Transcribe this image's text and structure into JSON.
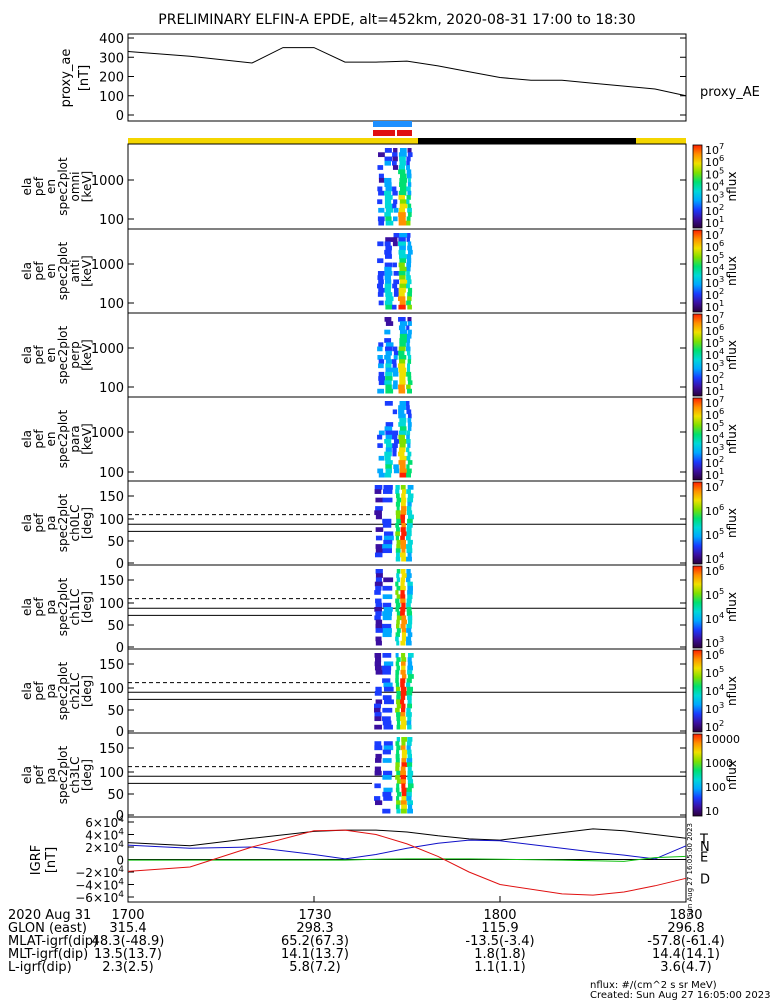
{
  "title": "PRELIMINARY ELFIN-A EPDE, alt=452km, 2020-08-31 17:00 to 18:30",
  "colors": {
    "yellow": "#f4d600",
    "blue_bar": "#1e90ff",
    "red_bar": "#e01010",
    "black": "#000000",
    "igrf_T": "#000000",
    "igrf_N": "#1010c8",
    "igrf_E": "#10c010",
    "igrf_D": "#e01010"
  },
  "colorbar_stops": [
    "#2a003a",
    "#3b0fa0",
    "#1a3cff",
    "#00a8ff",
    "#00d8d8",
    "#00e070",
    "#7fe000",
    "#f0e000",
    "#ff9000",
    "#ff2000"
  ],
  "chart_data": [
    {
      "type": "line",
      "name": "proxy_ae",
      "ylabel": "proxy_ae [nT]",
      "legend": "proxy_AE",
      "ylim": [
        0,
        400
      ],
      "yticks": [
        "400",
        "300",
        "200",
        "100",
        "0"
      ],
      "x_minutes": [
        0,
        10,
        20,
        25,
        30,
        35,
        40,
        45,
        50,
        55,
        60,
        65,
        70,
        75,
        80,
        85,
        90
      ],
      "values": [
        330,
        305,
        270,
        350,
        350,
        275,
        275,
        280,
        255,
        225,
        195,
        180,
        180,
        165,
        150,
        135,
        100
      ]
    },
    {
      "type": "heatmap",
      "name": "ela_pef_en_spec2plot_omni",
      "ylabel": "ela pef en spec2plot omni [keV]",
      "yticks": [
        "1000",
        "100"
      ],
      "colorbar_label": "nflux",
      "colorbar_ticks": [
        "10^7",
        "10^6",
        "10^5",
        "10^4",
        "10^3",
        "10^2",
        "10^1"
      ]
    },
    {
      "type": "heatmap",
      "name": "ela_pef_en_spec2plot_anti",
      "ylabel": "ela pef en spec2plot anti [keV]",
      "yticks": [
        "1000",
        "100"
      ],
      "colorbar_label": "nflux",
      "colorbar_ticks": [
        "10^7",
        "10^6",
        "10^5",
        "10^4",
        "10^3",
        "10^2",
        "10^1"
      ]
    },
    {
      "type": "heatmap",
      "name": "ela_pef_en_spec2plot_perp",
      "ylabel": "ela pef en spec2plot perp [keV]",
      "yticks": [
        "1000",
        "100"
      ],
      "colorbar_label": "nflux",
      "colorbar_ticks": [
        "10^7",
        "10^6",
        "10^5",
        "10^4",
        "10^3",
        "10^2",
        "10^1"
      ]
    },
    {
      "type": "heatmap",
      "name": "ela_pef_en_spec2plot_para",
      "ylabel": "ela pef en spec2plot para [keV]",
      "yticks": [
        "1000",
        "100"
      ],
      "colorbar_label": "nflux",
      "colorbar_ticks": [
        "10^7",
        "10^6",
        "10^5",
        "10^4",
        "10^3",
        "10^2",
        "10^1"
      ]
    },
    {
      "type": "heatmap",
      "name": "ela_pef_pa_spec2plot_ch0LC",
      "ylabel": "ela pef pa spec2plot ch0LC [deg]",
      "yticks": [
        "150",
        "100",
        "50",
        "0"
      ],
      "colorbar_label": "nflux",
      "colorbar_ticks": [
        "10^7",
        "10^6",
        "10^5",
        "10^4"
      ]
    },
    {
      "type": "heatmap",
      "name": "ela_pef_pa_spec2plot_ch1LC",
      "ylabel": "ela pef pa spec2plot ch1LC [deg]",
      "yticks": [
        "150",
        "100",
        "50",
        "0"
      ],
      "colorbar_label": "nflux",
      "colorbar_ticks": [
        "10^6",
        "10^5",
        "10^4",
        "10^3"
      ]
    },
    {
      "type": "heatmap",
      "name": "ela_pef_pa_spec2plot_ch2LC",
      "ylabel": "ela pef pa spec2plot ch2LC [deg]",
      "yticks": [
        "150",
        "100",
        "50",
        "0"
      ],
      "colorbar_label": "nflux",
      "colorbar_ticks": [
        "10^6",
        "10^5",
        "10^4",
        "10^3",
        "10^2"
      ]
    },
    {
      "type": "heatmap",
      "name": "ela_pef_pa_spec2plot_ch3LC",
      "ylabel": "ela pef pa spec2plot ch3LC [deg]",
      "yticks": [
        "150",
        "100",
        "50",
        "0"
      ],
      "colorbar_label": "nflux",
      "colorbar_ticks": [
        "10000",
        "1000",
        "100",
        "10"
      ]
    },
    {
      "type": "line",
      "name": "IGRF",
      "ylabel": "IGRF [nT]",
      "ylim": [
        -60000,
        60000
      ],
      "yticks": [
        "6×10^4",
        "4×10^4",
        "2×10^4",
        "0",
        "−2×10^4",
        "−4×10^4",
        "−6×10^4"
      ],
      "x_minutes": [
        0,
        10,
        20,
        30,
        35,
        40,
        45,
        50,
        55,
        60,
        70,
        75,
        80,
        85,
        90
      ],
      "series": [
        {
          "name": "T",
          "values": [
            27000,
            22000,
            34000,
            45000,
            47000,
            47000,
            44000,
            38000,
            33000,
            31000,
            43000,
            49000,
            46000,
            40000,
            34000
          ]
        },
        {
          "name": "N",
          "values": [
            23000,
            18000,
            20000,
            8000,
            1000,
            8000,
            18000,
            26000,
            31000,
            30000,
            18000,
            12000,
            7000,
            1000,
            22000
          ]
        },
        {
          "name": "E",
          "values": [
            -1000,
            -1000,
            -1000,
            -1000,
            -1000,
            500,
            1000,
            1000,
            1000,
            500,
            -1000,
            -2000,
            -3000,
            3000,
            5000
          ]
        },
        {
          "name": "D",
          "values": [
            -19000,
            -12000,
            20000,
            46000,
            47000,
            40000,
            25000,
            5000,
            -20000,
            -40000,
            -55000,
            -57000,
            -52000,
            -42000,
            -30000
          ]
        }
      ]
    }
  ],
  "x_axis": {
    "row_labels": [
      "2020 Aug 31",
      "GLON (east)",
      "MLAT-igrf(dip)",
      "MLT-igrf(dip)",
      "L-igrf(dip)"
    ],
    "columns": [
      [
        "1700",
        "315.4",
        "48.3(-48.9)",
        "13.5(13.7)",
        "2.3(2.5)"
      ],
      [
        "1730",
        "298.3",
        "65.2(67.3)",
        "14.1(13.7)",
        "5.8(7.2)"
      ],
      [
        "1800",
        "115.9",
        "-13.5(-3.4)",
        "1.8(1.8)",
        "1.1(1.1)"
      ],
      [
        "1830",
        "296.8",
        "-57.8(-61.4)",
        "14.4(14.1)",
        "3.6(4.7)"
      ]
    ]
  },
  "footer": {
    "units": "nflux: #/(cm^2 s sr MeV)",
    "created": "Created: Sun Aug 27 16:05:00 2023",
    "side_stamp": "Sun Aug 27 16:05:00 2023"
  }
}
